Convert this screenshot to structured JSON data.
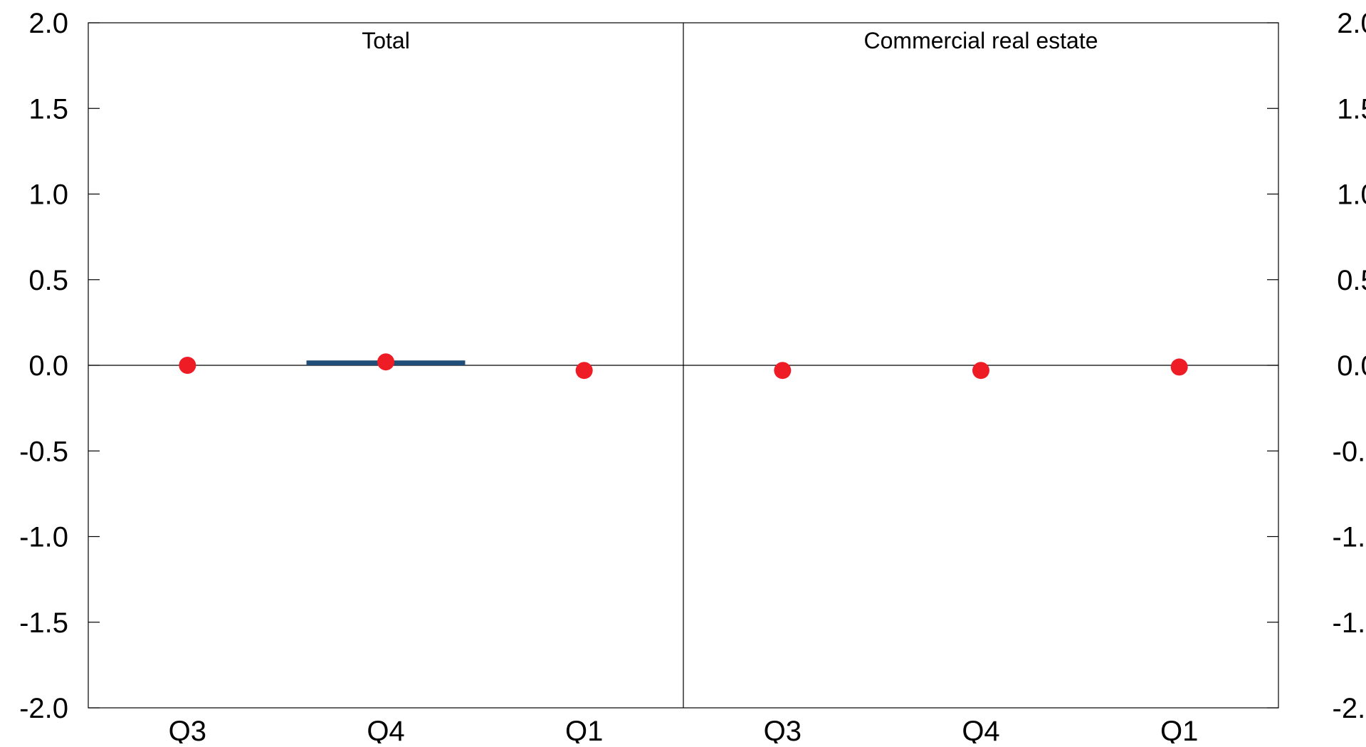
{
  "chart_data": {
    "type": "bar",
    "panels": [
      {
        "title": "Total",
        "categories": [
          "Q3",
          "Q4",
          "Q1"
        ],
        "bar_values": [
          null,
          0.02,
          null
        ],
        "dot_values": [
          0.0,
          0.02,
          -0.03
        ]
      },
      {
        "title": "Commercial real estate",
        "categories": [
          "Q3",
          "Q4",
          "Q1"
        ],
        "bar_values": [
          null,
          null,
          null
        ],
        "dot_values": [
          -0.03,
          -0.03,
          -0.01
        ]
      }
    ],
    "ylim": [
      -2.0,
      2.0
    ],
    "yticks": [
      "2.0",
      "1.5",
      "1.0",
      "0.5",
      "0.0",
      "-0.5",
      "-1.0",
      "-1.5",
      "-2.0"
    ],
    "ytick_values": [
      2.0,
      1.5,
      1.0,
      0.5,
      0.0,
      -0.5,
      -1.0,
      -1.5,
      -2.0
    ],
    "y_axis_right_mirror": true,
    "grid": false,
    "colors": {
      "bar": "#1f4e79",
      "dot": "#ee1c25",
      "axis": "#000000"
    }
  }
}
